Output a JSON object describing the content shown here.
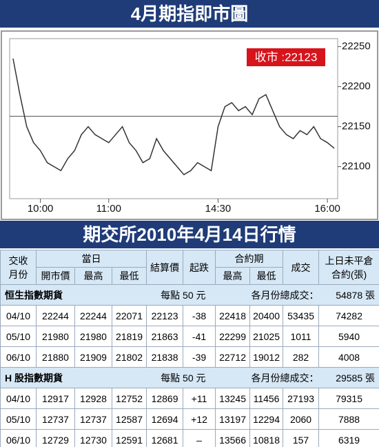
{
  "chart_data": {
    "type": "line",
    "title": "4月期指即市圖",
    "categories": [
      null,
      null,
      null,
      null,
      "10:00",
      null,
      null,
      null,
      null,
      null,
      null,
      null,
      null,
      null,
      "11:00",
      null,
      null,
      null,
      null,
      null,
      null,
      null,
      null,
      null,
      null,
      null,
      null,
      null,
      null,
      null,
      "14:30",
      null,
      null,
      null,
      null,
      null,
      null,
      null,
      null,
      null,
      null,
      null,
      null,
      null,
      null,
      null,
      "16:00",
      null
    ],
    "series": [
      {
        "name": null,
        "color": "#333333",
        "values": [
          22235,
          22190,
          22150,
          22130,
          22120,
          22105,
          22100,
          22095,
          22110,
          22120,
          22140,
          22150,
          22140,
          22135,
          22130,
          22140,
          22150,
          22130,
          22120,
          22105,
          22110,
          22135,
          22120,
          22110,
          22100,
          22090,
          22095,
          22105,
          22100,
          22095,
          22150,
          22175,
          22180,
          22170,
          22175,
          22165,
          22185,
          22190,
          22170,
          22150,
          22140,
          22135,
          22145,
          22140,
          22150,
          22135,
          22130,
          22123
        ]
      }
    ],
    "reference_line": 22163,
    "annotation": "收市 :22123",
    "ylim": [
      22060,
      22260
    ],
    "yticks": [
      22100,
      22150,
      22200,
      22250
    ]
  },
  "table": {
    "title": "期交所2010年4月14日行情",
    "header": {
      "month": [
        "交收",
        "月份"
      ],
      "day": "當日",
      "open": "開市價",
      "high": "最高",
      "low": "最低",
      "settle": "結算價",
      "change": "起跌",
      "contract": "合約期",
      "c_high": "最高",
      "c_low": "最低",
      "volume": "成交",
      "oi": [
        "上日未平倉",
        "合約(張)"
      ]
    },
    "sections": [
      {
        "name": "恒生指數期貨",
        "unit": "每點 50 元",
        "total_label": "各月份總成交：",
        "total": "54878 張",
        "rows": [
          [
            "04/10",
            "22244",
            "22244",
            "22071",
            "22123",
            "-38",
            "22418",
            "20400",
            "53435",
            "74282"
          ],
          [
            "05/10",
            "21980",
            "21980",
            "21819",
            "21863",
            "-41",
            "22299",
            "21025",
            "1011",
            "5940"
          ],
          [
            "06/10",
            "21880",
            "21909",
            "21802",
            "21838",
            "-39",
            "22712",
            "19012",
            "282",
            "4008"
          ]
        ]
      },
      {
        "name": "H 股指數期貨",
        "unit": "每點 50 元",
        "total_label": "各月份總成交：",
        "total": "29585 張",
        "rows": [
          [
            "04/10",
            "12917",
            "12928",
            "12752",
            "12869",
            "+11",
            "13245",
            "11456",
            "27193",
            "79315"
          ],
          [
            "05/10",
            "12737",
            "12737",
            "12587",
            "12694",
            "+12",
            "13197",
            "12294",
            "2060",
            "7888"
          ],
          [
            "06/10",
            "12729",
            "12730",
            "12591",
            "12681",
            "–",
            "13566",
            "10818",
            "157",
            "6319"
          ]
        ]
      }
    ]
  }
}
